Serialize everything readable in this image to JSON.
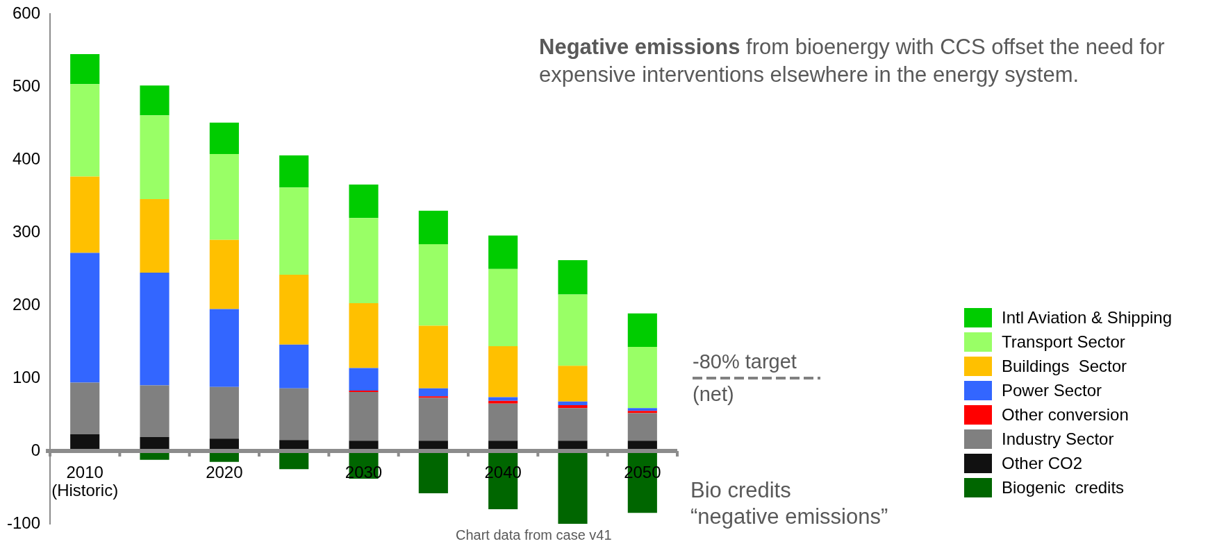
{
  "chart_data": {
    "type": "bar",
    "stacked": true,
    "title": "Negative emissions",
    "subtitle": "from bioenergy with CCS offset the need for expensive interventions elsewhere in the energy system.",
    "categories": [
      "2010 (Historic)",
      null,
      "2020",
      null,
      "2030",
      null,
      "2040",
      null,
      "2050"
    ],
    "series": [
      {
        "name": "Biogenic  credits",
        "color": "#006600",
        "values": [
          0,
          -12,
          -15,
          -25,
          -38,
          -58,
          -80,
          -100,
          -85
        ]
      },
      {
        "name": "Other CO2",
        "color": "#111111",
        "values": [
          23,
          19,
          17,
          15,
          14,
          14,
          14,
          14,
          14
        ]
      },
      {
        "name": "Industry Sector",
        "color": "#808080",
        "values": [
          71,
          71,
          71,
          71,
          67,
          59,
          51,
          45,
          38
        ]
      },
      {
        "name": "Other conversion",
        "color": "#ff0000",
        "values": [
          0,
          0,
          0,
          0,
          2,
          2,
          4,
          4,
          3
        ]
      },
      {
        "name": "Power Sector",
        "color": "#3366ff",
        "values": [
          178,
          155,
          107,
          60,
          31,
          11,
          5,
          5,
          4
        ]
      },
      {
        "name": "Buildings  Sector",
        "color": "#ffc000",
        "values": [
          105,
          101,
          95,
          96,
          89,
          86,
          70,
          49,
          0
        ]
      },
      {
        "name": "Transport Sector",
        "color": "#99ff66",
        "values": [
          127,
          115,
          118,
          120,
          117,
          112,
          106,
          98,
          84
        ]
      },
      {
        "name": "Intl Aviation & Shipping",
        "color": "#00cc00",
        "values": [
          41,
          41,
          43,
          44,
          46,
          46,
          46,
          47,
          46
        ]
      }
    ],
    "ylim": [
      -100,
      600
    ],
    "yticks": [
      -100,
      0,
      100,
      200,
      300,
      400,
      500,
      600
    ],
    "grid": false,
    "legend": "right",
    "ref_lines": [
      {
        "axis": "y",
        "value": 100,
        "label": "-80% target\n(net)",
        "color": "#808080",
        "line_style": "dashed"
      }
    ],
    "annotations": [
      "Bio credits\n“negative emissions”",
      "Chart data from case v41"
    ]
  }
}
